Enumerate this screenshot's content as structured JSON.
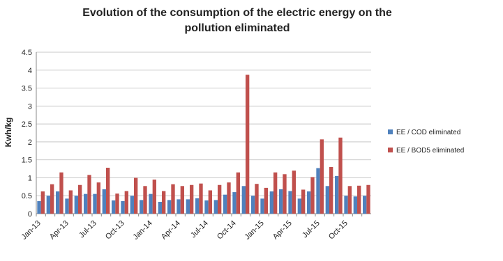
{
  "chart_data": {
    "type": "bar",
    "title": "Evolution of the consumption of the electric energy on the pollution eliminated",
    "y_label": "Kwh/kg",
    "categories": [
      "Jan-13",
      null,
      null,
      "Apr-13",
      null,
      null,
      "Jul-13",
      null,
      null,
      "Oct-13",
      null,
      null,
      "Jan-14",
      null,
      null,
      "Apr-14",
      null,
      null,
      "Jul-14",
      null,
      null,
      "Oct-14",
      null,
      null,
      "Jan-15",
      null,
      null,
      "Apr-15",
      null,
      null,
      "Jul-15",
      null,
      null,
      "Oct-15",
      null,
      null
    ],
    "series": [
      {
        "name": "EE / COD eliminated",
        "color": "#4f81bd",
        "values": [
          0.35,
          0.5,
          0.62,
          0.42,
          0.5,
          0.55,
          0.55,
          0.68,
          0.37,
          0.35,
          0.5,
          0.38,
          0.55,
          0.33,
          0.38,
          0.4,
          0.4,
          0.43,
          0.37,
          0.38,
          0.53,
          0.6,
          0.77,
          0.5,
          0.42,
          0.62,
          0.68,
          0.63,
          0.42,
          0.62,
          1.27,
          0.77,
          1.05,
          0.5,
          0.48,
          0.5
        ]
      },
      {
        "name": "EE / BOD5 eliminated",
        "color": "#c0504d",
        "values": [
          0.62,
          0.82,
          1.15,
          0.65,
          0.8,
          1.08,
          0.87,
          1.28,
          0.56,
          0.63,
          1.0,
          0.77,
          0.95,
          0.63,
          0.82,
          0.77,
          0.8,
          0.84,
          0.65,
          0.8,
          0.87,
          1.15,
          3.87,
          0.83,
          0.72,
          1.15,
          1.1,
          1.2,
          0.67,
          1.02,
          2.07,
          1.3,
          2.12,
          0.77,
          0.78,
          0.8
        ]
      }
    ],
    "ylim": [
      0,
      4.5
    ],
    "yticks": [
      0,
      0.5,
      1,
      1.5,
      2,
      2.5,
      3,
      3.5,
      4,
      4.5
    ],
    "grid": true,
    "legend": "right"
  }
}
